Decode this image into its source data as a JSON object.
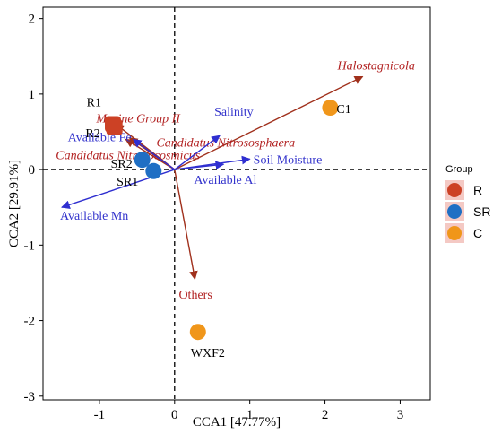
{
  "chart_data": {
    "type": "scatter",
    "xlabel": "CCA1 [47.77%]",
    "ylabel": "CCA2 [29.91%]",
    "xlim": [
      -1.75,
      3.4
    ],
    "ylim": [
      -3.05,
      2.15
    ],
    "xticks": [
      -1,
      0,
      1,
      2,
      3
    ],
    "yticks": [
      -3,
      -2,
      -1,
      0,
      1,
      2
    ],
    "reference_lines": {
      "x": 0,
      "y": 0,
      "style": "dashed"
    },
    "grid": false,
    "legend": {
      "title": "Group",
      "placement": "right",
      "entries": [
        {
          "label": "R",
          "color": "#cc4125"
        },
        {
          "label": "SR",
          "color": "#1f6fc4"
        },
        {
          "label": "C",
          "color": "#f0961a"
        }
      ]
    },
    "samples": [
      {
        "label": "R1",
        "group": "R",
        "x": -0.82,
        "y": 0.6
      },
      {
        "label": "R2",
        "group": "R",
        "x": -0.8,
        "y": 0.56
      },
      {
        "label": "SR2",
        "group": "SR",
        "x": -0.43,
        "y": 0.13
      },
      {
        "label": "SR1",
        "group": "SR",
        "x": -0.28,
        "y": -0.02
      },
      {
        "label": "C1",
        "group": "C",
        "x": 2.07,
        "y": 0.82
      },
      {
        "label": "WXF2",
        "group": "C",
        "x": 0.31,
        "y": -2.15
      }
    ],
    "taxa_arrows": [
      {
        "label": "Halostagnicola",
        "x": 2.5,
        "y": 1.23
      },
      {
        "label": "Marine Group II",
        "x": -0.78,
        "y": 0.6
      },
      {
        "label": "Candidatus Nitrososphaera",
        "x": -0.6,
        "y": 0.42
      },
      {
        "label": "Candidatus Nitrosocosmicus",
        "x": -0.65,
        "y": 0.4
      },
      {
        "label": "Others",
        "x": 0.27,
        "y": -1.45
      }
    ],
    "environment_arrows": [
      {
        "label": "Salinity",
        "x": 0.6,
        "y": 0.45
      },
      {
        "label": "Soil Moisture",
        "x": 1.0,
        "y": 0.14
      },
      {
        "label": "Available Fe",
        "x": -0.55,
        "y": 0.4
      },
      {
        "label": "Available Al",
        "x": 0.65,
        "y": 0.07
      },
      {
        "label": "Available Mn",
        "x": -1.5,
        "y": -0.5
      }
    ],
    "colors": {
      "taxa": "#a0301c",
      "environment": "#2f2fd0"
    }
  }
}
